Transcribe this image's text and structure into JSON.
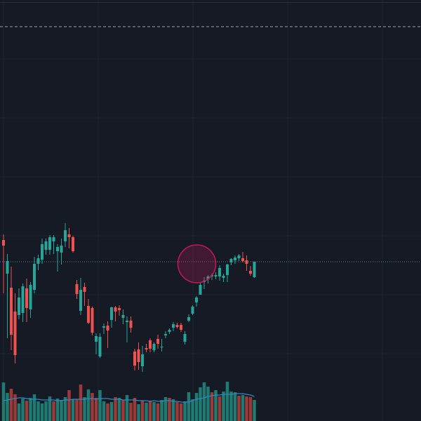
{
  "colors": {
    "background": "#161a25",
    "grid": "#1f2432",
    "up": "#26a69a",
    "down": "#ef5350",
    "volume_up": "#1f7a72",
    "volume_down": "#9c3a3a",
    "volume_ma": "#2f89c9",
    "price_line": "#5f7f8f",
    "dashed_line": "#9aa0aa",
    "highlight_fill": "#e91e63",
    "highlight_stroke": "#c2185b"
  },
  "chart_data": {
    "type": "candlestick",
    "grid": true,
    "ylim": [
      0,
      600
    ],
    "volume_ylim": [
      0,
      60
    ],
    "reference_level": 562,
    "last_price": 227,
    "highlight": {
      "center_index": 49,
      "center_price": 224
    },
    "candles": [
      {
        "o": 258,
        "h": 266,
        "l": 182,
        "c": 250
      },
      {
        "o": 210,
        "h": 238,
        "l": 118,
        "c": 228
      },
      {
        "o": 190,
        "h": 220,
        "l": 101,
        "c": 123
      },
      {
        "o": 156,
        "h": 182,
        "l": 82,
        "c": 94
      },
      {
        "o": 151,
        "h": 189,
        "l": 145,
        "c": 176
      },
      {
        "o": 154,
        "h": 196,
        "l": 141,
        "c": 192
      },
      {
        "o": 189,
        "h": 203,
        "l": 141,
        "c": 161
      },
      {
        "o": 159,
        "h": 198,
        "l": 147,
        "c": 194
      },
      {
        "o": 187,
        "h": 234,
        "l": 182,
        "c": 224
      },
      {
        "o": 224,
        "h": 237,
        "l": 215,
        "c": 232
      },
      {
        "o": 230,
        "h": 260,
        "l": 224,
        "c": 252
      },
      {
        "o": 244,
        "h": 260,
        "l": 237,
        "c": 256
      },
      {
        "o": 244,
        "h": 265,
        "l": 237,
        "c": 262
      },
      {
        "o": 256,
        "h": 265,
        "l": 238,
        "c": 262
      },
      {
        "o": 242,
        "h": 252,
        "l": 213,
        "c": 248
      },
      {
        "o": 240,
        "h": 260,
        "l": 223,
        "c": 250
      },
      {
        "o": 256,
        "h": 282,
        "l": 248,
        "c": 272
      },
      {
        "o": 266,
        "h": 275,
        "l": 246,
        "c": 262
      },
      {
        "o": 262,
        "h": 264,
        "l": 240,
        "c": 242
      },
      {
        "o": 195,
        "h": 201,
        "l": 174,
        "c": 181
      },
      {
        "o": 157,
        "h": 204,
        "l": 151,
        "c": 187
      },
      {
        "o": 191,
        "h": 197,
        "l": 164,
        "c": 184
      },
      {
        "o": 164,
        "h": 174,
        "l": 138,
        "c": 140
      },
      {
        "o": 161,
        "h": 163,
        "l": 122,
        "c": 126
      },
      {
        "o": 113,
        "h": 125,
        "l": 95,
        "c": 121
      },
      {
        "o": 92,
        "h": 125,
        "l": 90,
        "c": 120
      },
      {
        "o": 133,
        "h": 139,
        "l": 124,
        "c": 135
      },
      {
        "o": 136,
        "h": 142,
        "l": 104,
        "c": 129
      },
      {
        "o": 144,
        "h": 163,
        "l": 133,
        "c": 162
      },
      {
        "o": 162,
        "h": 164,
        "l": 142,
        "c": 156
      },
      {
        "o": 161,
        "h": 165,
        "l": 150,
        "c": 158
      },
      {
        "o": 147,
        "h": 159,
        "l": 138,
        "c": 151
      },
      {
        "o": 141,
        "h": 149,
        "l": 112,
        "c": 143
      },
      {
        "o": 143,
        "h": 149,
        "l": 126,
        "c": 133
      },
      {
        "o": 99,
        "h": 103,
        "l": 72,
        "c": 79
      },
      {
        "o": 102,
        "h": 112,
        "l": 73,
        "c": 84
      },
      {
        "o": 78,
        "h": 107,
        "l": 70,
        "c": 95
      },
      {
        "o": 104,
        "h": 110,
        "l": 98,
        "c": 102
      },
      {
        "o": 115,
        "h": 118,
        "l": 98,
        "c": 103
      },
      {
        "o": 101,
        "h": 112,
        "l": 98,
        "c": 110
      },
      {
        "o": 117,
        "h": 123,
        "l": 103,
        "c": 110
      },
      {
        "o": 105,
        "h": 117,
        "l": 99,
        "c": 106
      },
      {
        "o": 122,
        "h": 128,
        "l": 118,
        "c": 124
      },
      {
        "o": 127,
        "h": 132,
        "l": 124,
        "c": 130
      },
      {
        "o": 133,
        "h": 141,
        "l": 128,
        "c": 138
      },
      {
        "o": 137,
        "h": 140,
        "l": 132,
        "c": 134
      },
      {
        "o": 137,
        "h": 140,
        "l": 127,
        "c": 130
      },
      {
        "o": 113,
        "h": 128,
        "l": 109,
        "c": 124
      },
      {
        "o": 143,
        "h": 152,
        "l": 141,
        "c": 148
      },
      {
        "o": 153,
        "h": 165,
        "l": 151,
        "c": 163
      },
      {
        "o": 169,
        "h": 178,
        "l": 163,
        "c": 176
      },
      {
        "o": 180,
        "h": 198,
        "l": 180,
        "c": 194
      },
      {
        "o": 198,
        "h": 205,
        "l": 188,
        "c": 200
      },
      {
        "o": 202,
        "h": 208,
        "l": 196,
        "c": 206
      },
      {
        "o": 206,
        "h": 210,
        "l": 201,
        "c": 208
      },
      {
        "o": 206,
        "h": 212,
        "l": 202,
        "c": 208
      },
      {
        "o": 206,
        "h": 222,
        "l": 200,
        "c": 218
      },
      {
        "o": 204,
        "h": 210,
        "l": 198,
        "c": 207
      },
      {
        "o": 208,
        "h": 224,
        "l": 198,
        "c": 223
      },
      {
        "o": 226,
        "h": 232,
        "l": 222,
        "c": 231
      },
      {
        "o": 229,
        "h": 236,
        "l": 224,
        "c": 233
      },
      {
        "o": 232,
        "h": 238,
        "l": 228,
        "c": 236
      },
      {
        "o": 232,
        "h": 241,
        "l": 226,
        "c": 228
      },
      {
        "o": 229,
        "h": 236,
        "l": 214,
        "c": 224
      },
      {
        "o": 214,
        "h": 221,
        "l": 207,
        "c": 210
      },
      {
        "o": 205,
        "h": 227,
        "l": 204,
        "c": 227
      }
    ],
    "volumes": [
      {
        "v": 55,
        "up": true
      },
      {
        "v": 40,
        "up": true
      },
      {
        "v": 46,
        "up": false
      },
      {
        "v": 38,
        "up": false
      },
      {
        "v": 25,
        "up": true
      },
      {
        "v": 32,
        "up": true
      },
      {
        "v": 29,
        "up": false
      },
      {
        "v": 33,
        "up": true
      },
      {
        "v": 38,
        "up": true
      },
      {
        "v": 28,
        "up": true
      },
      {
        "v": 25,
        "up": true
      },
      {
        "v": 28,
        "up": true
      },
      {
        "v": 35,
        "up": true
      },
      {
        "v": 28,
        "up": false
      },
      {
        "v": 32,
        "up": true
      },
      {
        "v": 30,
        "up": true
      },
      {
        "v": 34,
        "up": true
      },
      {
        "v": 44,
        "up": false
      },
      {
        "v": 31,
        "up": true
      },
      {
        "v": 31,
        "up": false
      },
      {
        "v": 52,
        "up": false
      },
      {
        "v": 34,
        "up": true
      },
      {
        "v": 45,
        "up": true
      },
      {
        "v": 40,
        "up": false
      },
      {
        "v": 33,
        "up": false
      },
      {
        "v": 44,
        "up": true
      },
      {
        "v": 28,
        "up": true
      },
      {
        "v": 25,
        "up": false
      },
      {
        "v": 27,
        "up": true
      },
      {
        "v": 34,
        "up": false
      },
      {
        "v": 33,
        "up": true
      },
      {
        "v": 30,
        "up": false
      },
      {
        "v": 37,
        "up": true
      },
      {
        "v": 26,
        "up": false
      },
      {
        "v": 33,
        "up": false
      },
      {
        "v": 24,
        "up": true
      },
      {
        "v": 29,
        "up": false
      },
      {
        "v": 26,
        "up": true
      },
      {
        "v": 29,
        "up": false
      },
      {
        "v": 27,
        "up": true
      },
      {
        "v": 25,
        "up": false
      },
      {
        "v": 30,
        "up": true
      },
      {
        "v": 34,
        "up": true
      },
      {
        "v": 33,
        "up": false
      },
      {
        "v": 31,
        "up": true
      },
      {
        "v": 27,
        "up": false
      },
      {
        "v": 25,
        "up": false
      },
      {
        "v": 28,
        "up": true
      },
      {
        "v": 41,
        "up": true
      },
      {
        "v": 31,
        "up": true
      },
      {
        "v": 40,
        "up": true
      },
      {
        "v": 48,
        "up": true
      },
      {
        "v": 55,
        "up": true
      },
      {
        "v": 49,
        "up": true
      },
      {
        "v": 41,
        "up": false
      },
      {
        "v": 44,
        "up": true
      },
      {
        "v": 35,
        "up": false
      },
      {
        "v": 42,
        "up": true
      },
      {
        "v": 56,
        "up": true
      },
      {
        "v": 42,
        "up": true
      },
      {
        "v": 41,
        "up": true
      },
      {
        "v": 36,
        "up": false
      },
      {
        "v": 37,
        "up": true
      },
      {
        "v": 35,
        "up": false
      },
      {
        "v": 34,
        "up": false
      },
      {
        "v": 30,
        "up": true
      }
    ],
    "volume_ma": [
      29,
      30,
      31,
      32,
      33,
      33,
      32,
      31,
      31,
      31,
      30,
      30,
      30,
      30,
      29,
      29,
      30,
      30,
      31,
      31,
      31,
      31,
      32,
      32,
      31,
      32,
      32,
      32,
      31,
      31,
      31,
      30,
      30,
      30,
      30,
      29,
      29,
      29,
      28,
      29,
      28,
      28,
      29,
      29,
      28,
      28,
      27,
      27,
      27,
      29,
      31,
      32,
      33,
      35,
      36,
      37,
      37,
      38,
      38,
      38,
      39,
      39,
      39,
      38,
      37,
      35
    ]
  }
}
